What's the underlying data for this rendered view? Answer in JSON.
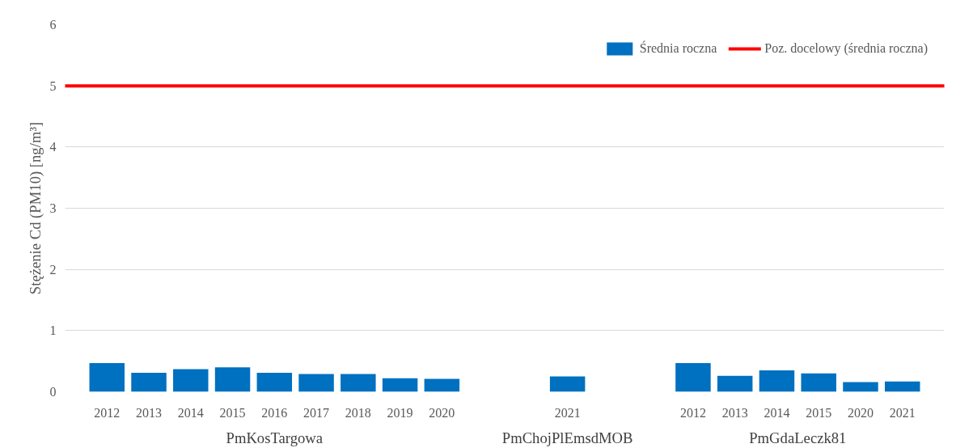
{
  "chart_data": {
    "type": "bar",
    "ylabel": "Stężenie Cd (PM10) [ng/m³]",
    "categories": [
      "2012",
      "2013",
      "2014",
      "2015",
      "2016",
      "2017",
      "2018",
      "2019",
      "2020",
      null,
      null,
      "2021",
      null,
      null,
      "2012",
      "2013",
      "2014",
      "2015",
      "2020",
      "2021"
    ],
    "series": [
      {
        "name": "Średnia roczna",
        "color": "#0070c0",
        "values": [
          0.47,
          0.31,
          0.37,
          0.4,
          0.31,
          0.29,
          0.29,
          0.22,
          0.21,
          null,
          null,
          0.25,
          null,
          null,
          0.47,
          0.26,
          0.35,
          0.3,
          0.16,
          0.17
        ]
      }
    ],
    "annotations": [
      "PmKosTargowa",
      "PmChojPlEmsdMOB",
      "PmGdaLeczk81"
    ],
    "ref_lines": [
      {
        "axis": "y",
        "value": 5,
        "label": "Poz. docelowy (średnia roczna)",
        "color": "#ff0000"
      }
    ],
    "ylim": [
      0,
      6
    ],
    "yticks": [
      0,
      1,
      2,
      3,
      4,
      5,
      6
    ],
    "grid": "y",
    "legend": "top right"
  }
}
